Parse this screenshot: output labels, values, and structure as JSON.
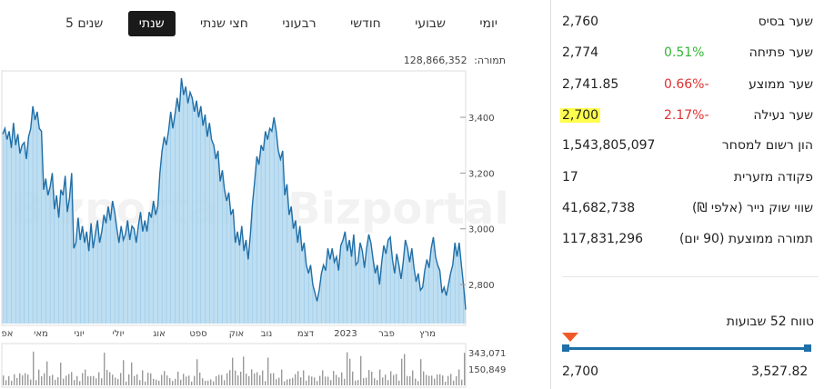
{
  "tabs": [
    {
      "label": "יומי",
      "active": false
    },
    {
      "label": "שבועי",
      "active": false
    },
    {
      "label": "חודשי",
      "active": false
    },
    {
      "label": "רבעוני",
      "active": false
    },
    {
      "label": "חצי שנתי",
      "active": false
    },
    {
      "label": "שנתי",
      "active": true
    },
    {
      "label": "5 שנים",
      "active": false
    }
  ],
  "volume_label": "תמורה:",
  "volume_value": "128,866,352",
  "watermark": "Bizportal",
  "colors": {
    "line": "#1f6fa8",
    "fill": "#b3d8ef",
    "positive": "#33b533",
    "negative": "#e03030",
    "highlight": "#ffff4d",
    "marker": "#f05a28"
  },
  "chart_data": {
    "type": "area",
    "x_labels": [
      "אפ",
      "מאי",
      "יוני",
      "יולי",
      "אוג",
      "ספט",
      "אוק",
      "נוב",
      "דצמ",
      "2023",
      "פבר",
      "מרץ"
    ],
    "y_ticks": [
      "3,400",
      "3,200",
      "3,000",
      "2,800"
    ],
    "ylim": [
      2660,
      3560
    ],
    "price": [
      3340,
      3360,
      3320,
      3350,
      3290,
      3380,
      3300,
      3340,
      3270,
      3300,
      3310,
      3250,
      3330,
      3360,
      3440,
      3390,
      3420,
      3360,
      3350,
      3140,
      3180,
      3120,
      3150,
      3200,
      3070,
      3120,
      3040,
      3140,
      3120,
      3190,
      3060,
      3110,
      3200,
      2930,
      2950,
      3040,
      2960,
      3010,
      2950,
      2990,
      2920,
      3020,
      2930,
      2980,
      3030,
      2950,
      2990,
      3050,
      3020,
      3080,
      3030,
      3100,
      3060,
      3000,
      2950,
      3010,
      2960,
      2980,
      3030,
      2960,
      3010,
      3000,
      2950,
      3010,
      3060,
      2990,
      3030,
      2990,
      3060,
      3040,
      3100,
      3050,
      3080,
      3200,
      3280,
      3330,
      3300,
      3350,
      3420,
      3360,
      3410,
      3470,
      3420,
      3540,
      3480,
      3510,
      3450,
      3490,
      3470,
      3420,
      3460,
      3400,
      3440,
      3370,
      3410,
      3330,
      3380,
      3320,
      3300,
      3250,
      3280,
      3170,
      3210,
      3140,
      3100,
      3130,
      3050,
      3070,
      2950,
      2990,
      2940,
      3010,
      2920,
      2960,
      2890,
      2980,
      3090,
      3170,
      3260,
      3230,
      3300,
      3280,
      3350,
      3320,
      3360,
      3350,
      3400,
      3350,
      3280,
      3250,
      3280,
      3120,
      3160,
      3050,
      3080,
      3000,
      3030,
      2950,
      3010,
      2920,
      2950,
      2870,
      2840,
      2870,
      2800,
      2770,
      2740,
      2780,
      2840,
      2870,
      2850,
      2930,
      2890,
      2930,
      2880,
      2900,
      2850,
      2940,
      2960,
      2990,
      2920,
      2960,
      2900,
      2980,
      2870,
      2880,
      2950,
      2920,
      2860,
      2930,
      2980,
      2950,
      2890,
      2840,
      2870,
      2800,
      2880,
      2940,
      2910,
      2960,
      2970,
      2890,
      2840,
      2910,
      2870,
      2820,
      2880,
      2960,
      2930,
      2880,
      2930,
      2860,
      2810,
      2840,
      2780,
      2790,
      2850,
      2890,
      2860,
      2930,
      2970,
      2900,
      2870,
      2850,
      2770,
      2790,
      2760,
      2800,
      2840,
      2870,
      2950,
      2900,
      2950,
      2870,
      2800,
      2710
    ],
    "volume_axis_labels": [
      "343,071",
      "150,849"
    ]
  },
  "stats": [
    {
      "label": "שער בסיס",
      "value": "2,760",
      "change": "",
      "change_class": "",
      "highlight": false
    },
    {
      "label": "שער פתיחה",
      "value": "2,774",
      "change": "0.51%",
      "change_class": "pos",
      "highlight": false
    },
    {
      "label": "שער ממוצע",
      "value": "2,741.85",
      "change": "0.66%-",
      "change_class": "neg",
      "highlight": false
    },
    {
      "label": "שער נעילה",
      "value": "2,700",
      "change": "2.17%-",
      "change_class": "neg",
      "highlight": true
    },
    {
      "label": "הון רשום למסחר",
      "value": "1,543,805,097",
      "change": "",
      "change_class": "",
      "highlight": false
    },
    {
      "label": "פקודה מזערית",
      "value": "17",
      "change": "",
      "change_class": "",
      "highlight": false
    },
    {
      "label": "שווי שוק נייר (אלפי ₪)",
      "value": "41,682,738",
      "change": "",
      "change_class": "",
      "highlight": false
    },
    {
      "label": "תמורה ממוצעת (90 יום)",
      "value": "117,831,296",
      "change": "",
      "change_class": "",
      "highlight": false
    }
  ],
  "range52": {
    "title": "טווח 52 שבועות",
    "low": "2,700",
    "high": "3,527.82",
    "current_fraction": 0.0
  }
}
